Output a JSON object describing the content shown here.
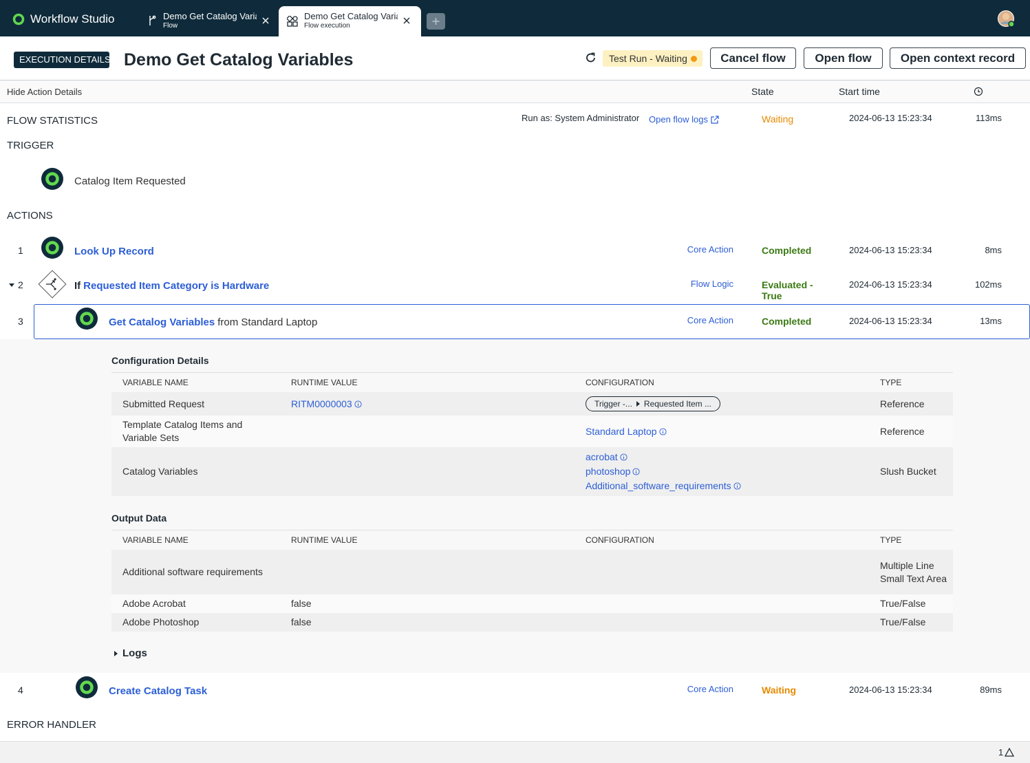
{
  "app": {
    "name": "Workflow Studio",
    "tabs": [
      {
        "title": "Demo Get Catalog Variables",
        "subtitle": "Flow"
      },
      {
        "title": "Demo Get Catalog Variables",
        "subtitle": "Flow execution"
      }
    ]
  },
  "header": {
    "badge": "EXECUTION DETAILS",
    "title": "Demo Get Catalog Variables",
    "status": "Test Run - Waiting",
    "buttons": [
      "Cancel flow",
      "Open flow",
      "Open context record"
    ]
  },
  "columns": {
    "toggle": "Hide Action Details",
    "state": "State",
    "start_time": "Start time"
  },
  "flow_statistics": {
    "label": "FLOW STATISTICS",
    "run_as": "Run as: System Administrator",
    "logs_link": "Open flow logs",
    "state": "Waiting",
    "start_time": "2024-06-13 15:23:34",
    "duration": "113ms"
  },
  "trigger": {
    "label": "TRIGGER",
    "name": "Catalog Item Requested"
  },
  "actions": {
    "label": "ACTIONS",
    "items": [
      {
        "number": "1",
        "name": "Look Up Record",
        "category": "Core Action",
        "state": "Completed",
        "start_time": "2024-06-13 15:23:34",
        "duration": "8ms"
      },
      {
        "number": "2",
        "prefix": "If",
        "name": "Requested Item Category is Hardware",
        "category": "Flow Logic",
        "state": "Evaluated - True",
        "start_time": "2024-06-13 15:23:34",
        "duration": "102ms"
      },
      {
        "number": "3",
        "name": "Get Catalog Variables",
        "suffix": "from Standard Laptop",
        "category": "Core Action",
        "state": "Completed",
        "start_time": "2024-06-13 15:23:34",
        "duration": "13ms"
      },
      {
        "number": "4",
        "name": "Create Catalog Task",
        "category": "Core Action",
        "state": "Waiting",
        "start_time": "2024-06-13 15:23:34",
        "duration": "89ms"
      }
    ]
  },
  "configuration": {
    "title": "Configuration Details",
    "headers": [
      "VARIABLE NAME",
      "RUNTIME VALUE",
      "CONFIGURATION",
      "TYPE"
    ],
    "rows": [
      {
        "name": "Submitted Request",
        "runtime_value": "RITM0000003",
        "configuration": {
          "pill": [
            "Trigger -...",
            "Requested Item ..."
          ]
        },
        "type": "Reference"
      },
      {
        "name": "Template Catalog Items and Variable Sets",
        "configuration": {
          "links": [
            "Standard Laptop"
          ]
        },
        "type": "Reference"
      },
      {
        "name": "Catalog Variables",
        "configuration": {
          "links": [
            "acrobat",
            "photoshop",
            "Additional_software_requirements"
          ]
        },
        "type": "Slush Bucket"
      }
    ]
  },
  "output": {
    "title": "Output Data",
    "headers": [
      "VARIABLE NAME",
      "RUNTIME VALUE",
      "CONFIGURATION",
      "TYPE"
    ],
    "rows": [
      {
        "name": "Additional software requirements",
        "type": "Multiple Line Small Text Area"
      },
      {
        "name": "Adobe Acrobat",
        "runtime_value": "false",
        "type": "True/False"
      },
      {
        "name": "Adobe Photoshop",
        "runtime_value": "false",
        "type": "True/False"
      }
    ]
  },
  "logs": "Logs",
  "error_handler": "ERROR HANDLER",
  "footer": {
    "count": "1"
  }
}
